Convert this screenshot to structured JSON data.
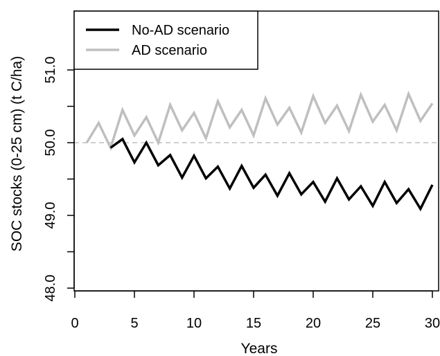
{
  "chart_data": {
    "type": "line",
    "title": "",
    "xlabel": "Years",
    "ylabel": "SOC stocks (0-25 cm) (t C/ha)",
    "xlim": [
      0,
      30
    ],
    "ylim": [
      48.0,
      51.0
    ],
    "x_ticks": [
      "0",
      "5",
      "10",
      "15",
      "20",
      "25",
      "30"
    ],
    "y_ticks": [
      "48.0",
      "",
      "49.0",
      "",
      "50.0",
      "",
      "51.0"
    ],
    "y_tick_values": [
      48.0,
      48.5,
      49.0,
      49.5,
      50.0,
      50.5,
      51.0
    ],
    "x_tick_values": [
      0,
      5,
      10,
      15,
      20,
      25,
      30
    ],
    "grid": false,
    "legend_position": "top-left",
    "reference_line": {
      "y": 50.0,
      "style": "dashed",
      "color": "#bfbfbf"
    },
    "series": [
      {
        "name": "No-AD scenario",
        "color": "#000000",
        "x": [
          3,
          4,
          5,
          6,
          7,
          8,
          9,
          10,
          11,
          12,
          13,
          14,
          15,
          16,
          17,
          18,
          19,
          20,
          21,
          22,
          23,
          24,
          25,
          26,
          27,
          28,
          29,
          30
        ],
        "values": [
          49.93,
          50.05,
          49.73,
          50.0,
          49.69,
          49.83,
          49.52,
          49.82,
          49.51,
          49.67,
          49.37,
          49.68,
          49.38,
          49.56,
          49.27,
          49.58,
          49.29,
          49.46,
          49.19,
          49.51,
          49.22,
          49.4,
          49.13,
          49.46,
          49.17,
          49.36,
          49.09,
          49.42
        ]
      },
      {
        "name": "AD scenario",
        "color": "#bfbfbf",
        "x": [
          1,
          2,
          3,
          4,
          5,
          6,
          7,
          8,
          9,
          10,
          11,
          12,
          13,
          14,
          15,
          16,
          17,
          18,
          19,
          20,
          21,
          22,
          23,
          24,
          25,
          26,
          27,
          28,
          29,
          30
        ],
        "values": [
          50.0,
          50.27,
          49.93,
          50.45,
          50.1,
          50.35,
          50.0,
          50.52,
          50.17,
          50.41,
          50.06,
          50.57,
          50.21,
          50.45,
          50.1,
          50.61,
          50.25,
          50.48,
          50.14,
          50.64,
          50.27,
          50.51,
          50.16,
          50.66,
          50.29,
          50.52,
          50.17,
          50.67,
          50.3,
          50.54
        ]
      }
    ]
  }
}
